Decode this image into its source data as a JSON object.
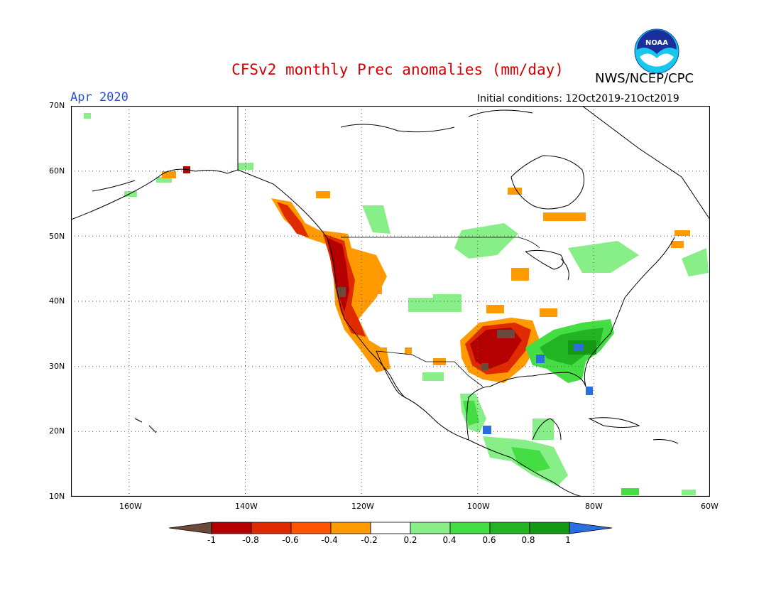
{
  "title": "CFSv2 monthly Prec anomalies (mm/day)",
  "agency": "NWS/NCEP/CPC",
  "logo_text": "NOAA",
  "valid_month": "Apr 2020",
  "initial_conditions": "Initial conditions: 12Oct2019-21Oct2019",
  "map": {
    "lat_range": [
      10,
      70
    ],
    "lon_range": [
      -170,
      -60
    ],
    "lat_labels": [
      "70N",
      "60N",
      "50N",
      "40N",
      "30N",
      "20N",
      "10N"
    ],
    "lon_labels": [
      "160W",
      "140W",
      "120W",
      "100W",
      "80W",
      "60W"
    ],
    "grid": "dotted"
  },
  "colorbar": {
    "ticks": [
      "-1",
      "-0.8",
      "-0.6",
      "-0.4",
      "-0.2",
      "0.2",
      "0.4",
      "0.6",
      "0.8",
      "1"
    ],
    "colors": [
      "#6b4a3c",
      "#b40000",
      "#e02a00",
      "#ff5500",
      "#ff9a00",
      "#ffffff",
      "#88ee88",
      "#44dd44",
      "#22b422",
      "#139913",
      "#2a6fe0"
    ]
  },
  "anomaly_regions": [
    {
      "name": "pacific-northwest-coast-dry",
      "color": "#b40000"
    },
    {
      "name": "california-dry",
      "color": "#b40000"
    },
    {
      "name": "great-basin-dry",
      "color": "#ff9a00"
    },
    {
      "name": "texas-oklahoma-dry",
      "color": "#b40000"
    },
    {
      "name": "southeast-wet",
      "color": "#22b422"
    },
    {
      "name": "mexico-wet",
      "color": "#44dd44"
    }
  ]
}
